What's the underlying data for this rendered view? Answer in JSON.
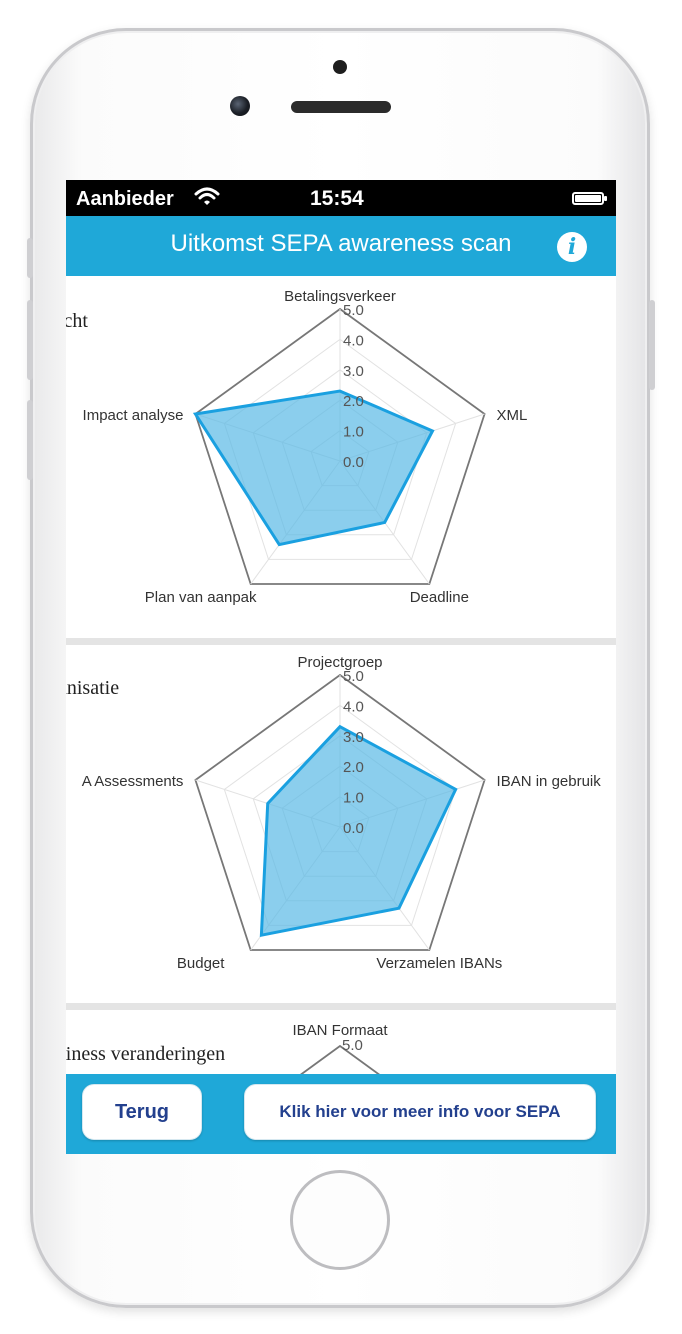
{
  "status_bar": {
    "carrier": "Aanbieder",
    "time": "15:54"
  },
  "nav": {
    "title": "Uitkomst SEPA awareness scan",
    "info_icon": "i"
  },
  "panels": [
    {
      "title": "icht",
      "axes": [
        "Betalingsverkeer",
        "XML",
        "Deadline",
        "Plan van aanpak",
        "Impact analyse"
      ]
    },
    {
      "title": "anisatie",
      "axes": [
        "Projectgroep",
        "IBAN in gebruik",
        "Verzamelen IBANs",
        "Budget",
        "A Assessments"
      ]
    },
    {
      "title": "siness veranderingen",
      "axes": [
        "IBAN Formaat"
      ]
    }
  ],
  "scale_labels": [
    "0.0",
    "1.0",
    "2.0",
    "3.0",
    "4.0",
    "5.0"
  ],
  "buttons": {
    "back": "Terug",
    "more_info": "Klik hier voor meer info voor SEPA"
  },
  "colors": {
    "accent": "#1fa8d8",
    "button_text": "#23408e",
    "radar_fill": "#5ab9e6",
    "radar_stroke": "#1aa0e0"
  },
  "chart_data": [
    {
      "type": "radar",
      "categories": [
        "Betalingsverkeer",
        "XML",
        "Deadline",
        "Plan van aanpak",
        "Impact analyse"
      ],
      "values": [
        2.3,
        3.2,
        2.5,
        3.4,
        5.0
      ],
      "ylim": [
        0,
        5
      ],
      "ticks": [
        "0.0",
        "1.0",
        "2.0",
        "3.0",
        "4.0",
        "5.0"
      ]
    },
    {
      "type": "radar",
      "categories": [
        "Projectgroep",
        "IBAN in gebruik",
        "Verzamelen IBANs",
        "Budget",
        "A Assessments"
      ],
      "values": [
        3.3,
        4.0,
        3.3,
        4.4,
        2.5
      ],
      "ylim": [
        0,
        5
      ],
      "ticks": [
        "0.0",
        "1.0",
        "2.0",
        "3.0",
        "4.0",
        "5.0"
      ]
    }
  ]
}
